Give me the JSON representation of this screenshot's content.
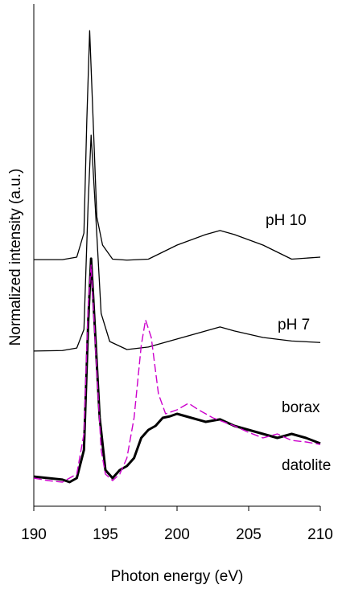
{
  "chart_data": {
    "type": "line",
    "x_label": "Photon energy (eV)",
    "y_label": "Normalized intensity (a.u.)",
    "xlim": [
      190,
      210
    ],
    "xticks": [
      190,
      195,
      200,
      205,
      210
    ],
    "ylim": [
      0,
      100
    ],
    "series": [
      {
        "name": "pH 10",
        "color": "#000000",
        "x": [
          190,
          192,
          193,
          193.5,
          193.7,
          193.9,
          194.1,
          194.4,
          194.8,
          195.5,
          196.5,
          198,
          200,
          202,
          203,
          204,
          206,
          208,
          210
        ],
        "values": [
          49.1,
          49.1,
          49.6,
          54.4,
          76.8,
          94.7,
          80,
          57.6,
          52,
          49.2,
          49,
          49.2,
          52,
          54.1,
          54.9,
          54.1,
          52,
          49.2,
          49.6
        ]
      },
      {
        "name": "pH 7",
        "color": "#000000",
        "x": [
          190,
          192,
          193,
          193.5,
          193.8,
          194.0,
          194.3,
          194.7,
          195.3,
          196.5,
          198,
          200,
          202,
          203,
          204,
          206,
          208,
          210
        ],
        "values": [
          30.9,
          31,
          31.5,
          35.2,
          60.8,
          73.9,
          59.2,
          38.4,
          32.8,
          31.2,
          31.7,
          33.3,
          34.9,
          35.7,
          34.9,
          33.6,
          32.9,
          32.6
        ]
      },
      {
        "name": "borax",
        "color": "#000000",
        "x": [
          190,
          191,
          192,
          192.5,
          193,
          193.5,
          193.8,
          194.0,
          194.3,
          194.6,
          195,
          195.5,
          196,
          196.5,
          197,
          197.5,
          198,
          198.5,
          199,
          199.5,
          200,
          201,
          202,
          203,
          204,
          205,
          206,
          207,
          208,
          209,
          210
        ],
        "values": [
          5.9,
          5.6,
          5.3,
          4.8,
          5.6,
          11.2,
          36.8,
          49.3,
          33.6,
          17.6,
          7.2,
          5.6,
          7.2,
          8,
          9.6,
          13.6,
          15.2,
          16,
          17.6,
          17.9,
          18.4,
          17.6,
          16.8,
          17.3,
          16,
          15.2,
          14.4,
          13.6,
          14.4,
          13.6,
          12.5
        ]
      },
      {
        "name": "datolite",
        "color": "#cc00cc",
        "x": [
          190,
          191,
          192,
          193,
          193.5,
          193.8,
          194.0,
          194.3,
          194.7,
          195,
          195.5,
          196,
          196.5,
          197,
          197.5,
          197.8,
          198.2,
          198.7,
          199.2,
          200,
          200.8,
          201.5,
          202.5,
          204,
          205,
          206,
          207,
          208,
          209,
          210
        ],
        "values": [
          5.6,
          5.1,
          4.8,
          6.4,
          14.4,
          40,
          48,
          32,
          11.2,
          6.4,
          5.1,
          6.4,
          9.6,
          17.6,
          32,
          37.1,
          33.6,
          22.4,
          18.4,
          19.2,
          20.5,
          19.2,
          17.6,
          16,
          14.7,
          13.6,
          14.4,
          13.1,
          12.8,
          12.3
        ]
      }
    ]
  }
}
